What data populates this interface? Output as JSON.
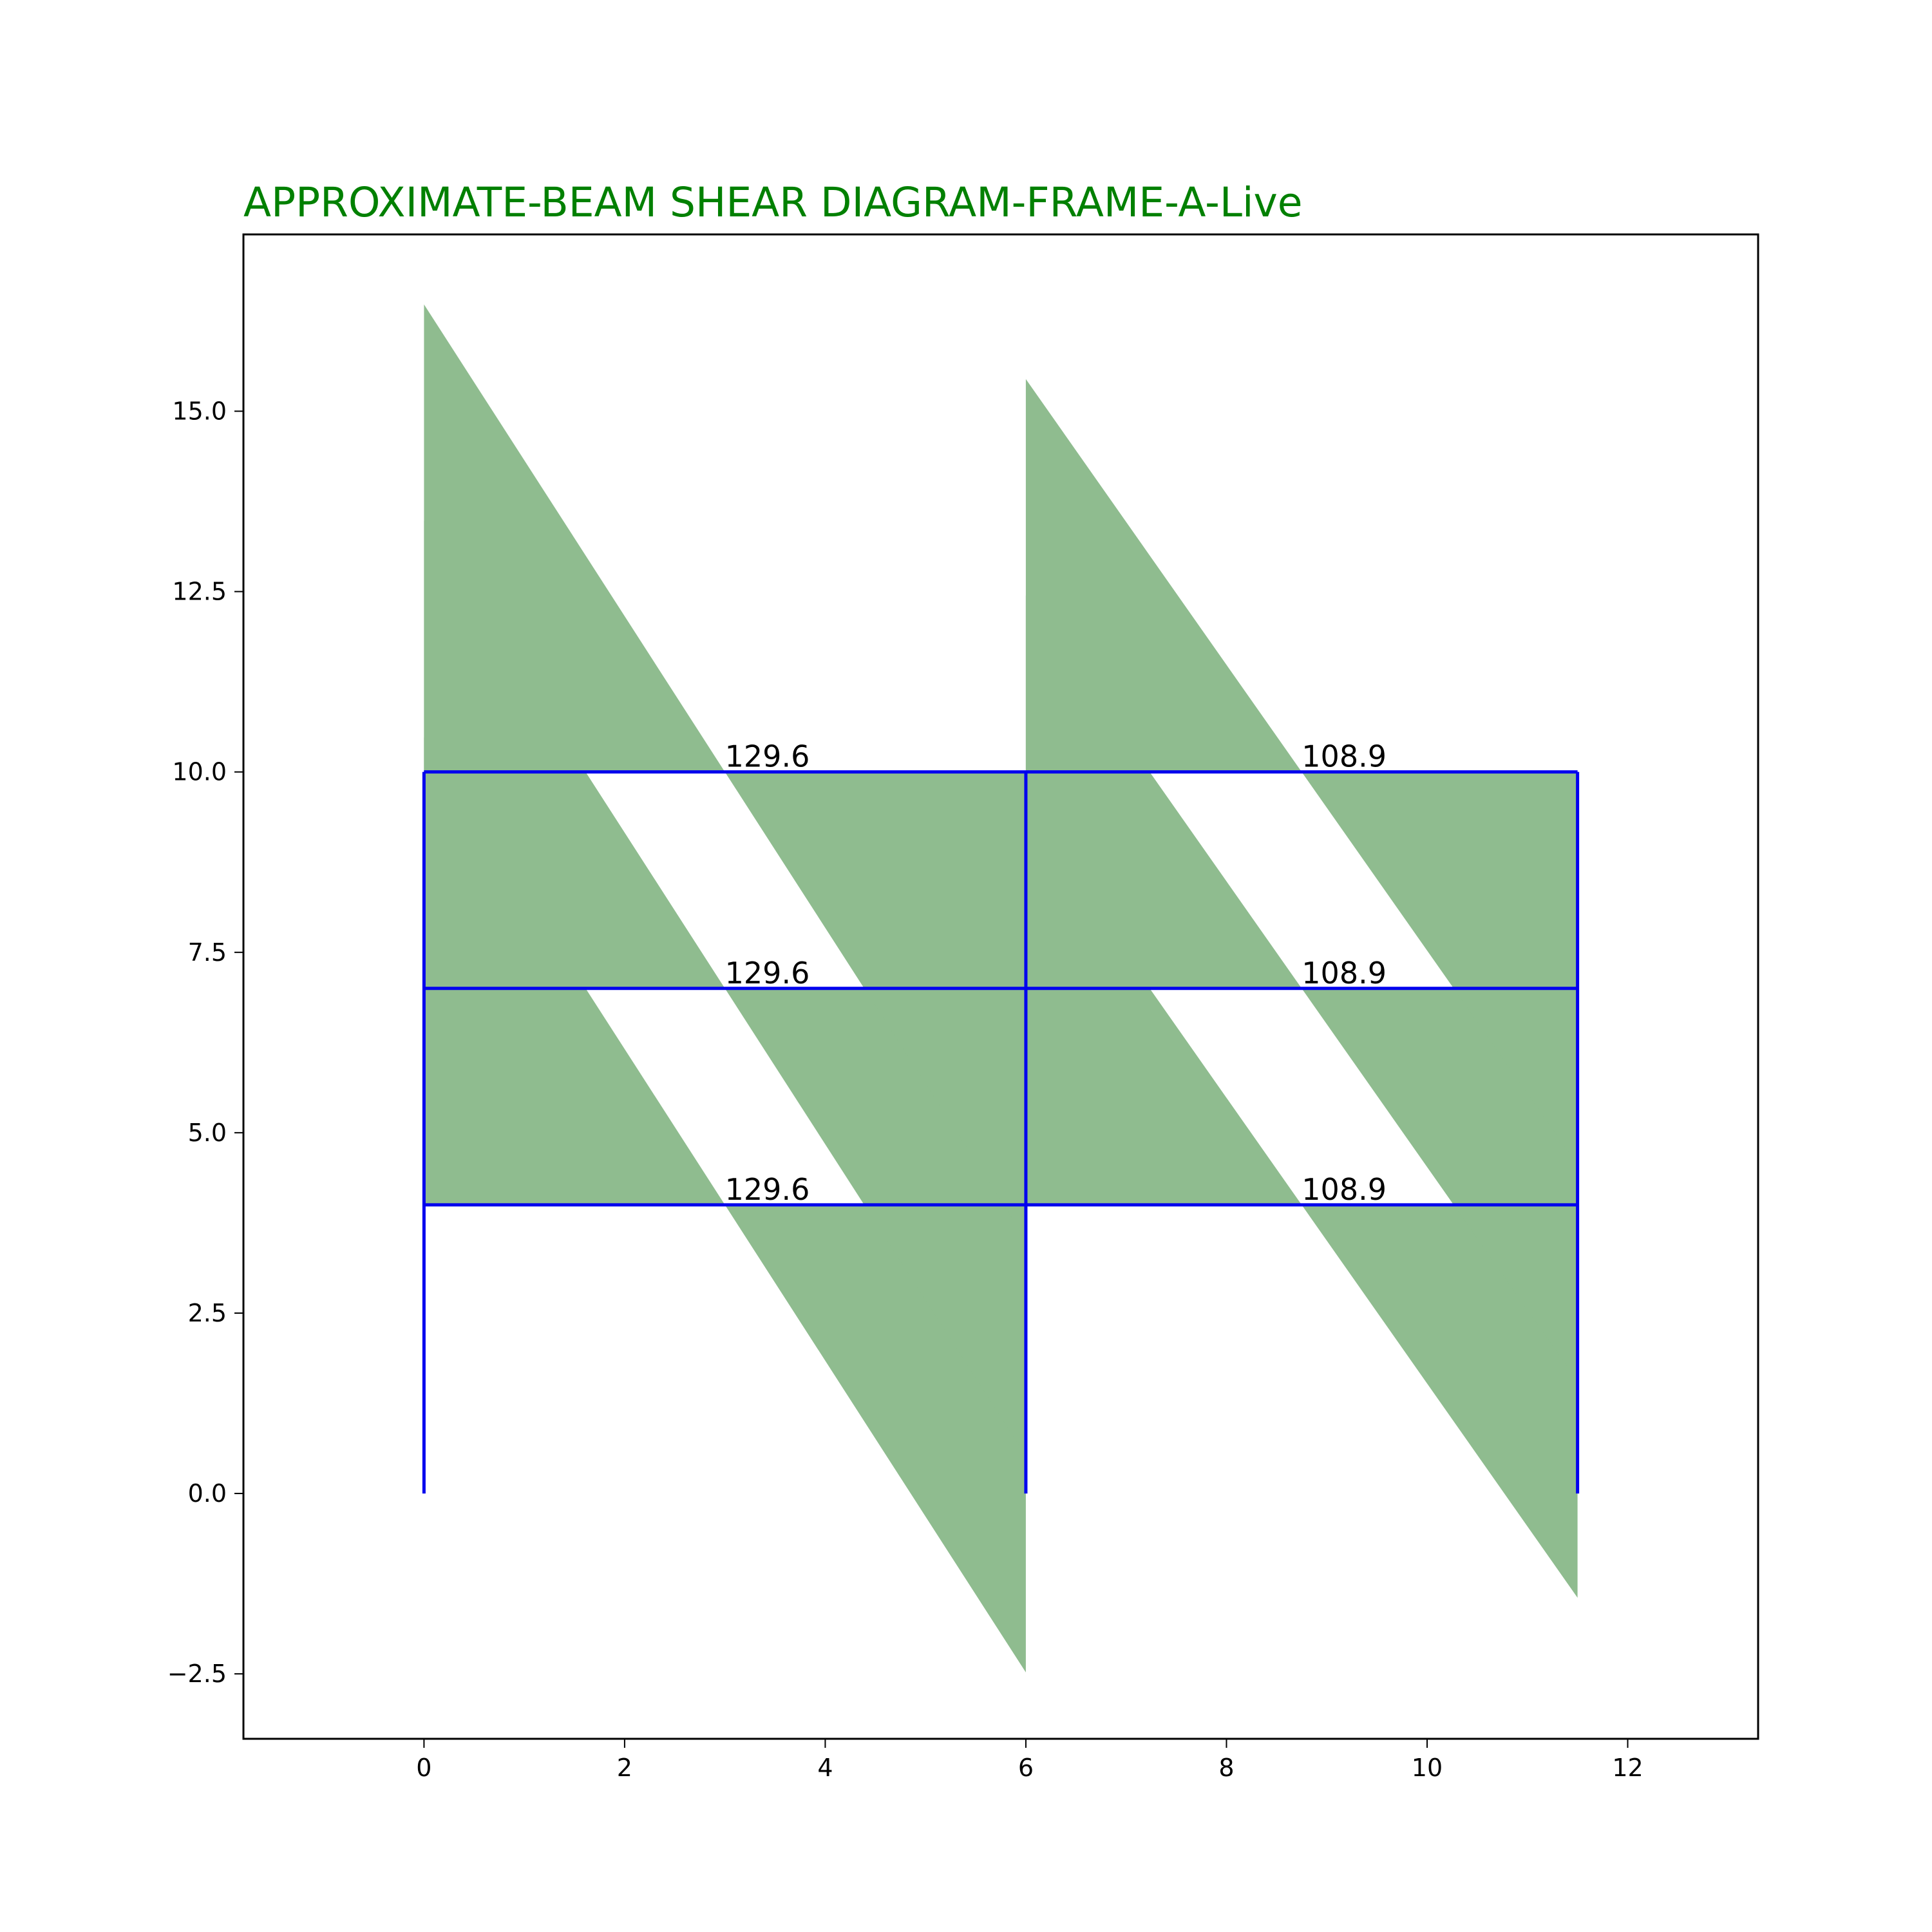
{
  "chart_data": {
    "type": "area",
    "title": "APPROXIMATE-BEAM SHEAR DIAGRAM-FRAME-A-Live",
    "xlabel": "",
    "ylabel": "",
    "xlim": [
      -1.8,
      13.3
    ],
    "ylim": [
      -3.4,
      17.45
    ],
    "x_ticks": [
      0,
      2,
      4,
      6,
      8,
      10,
      12
    ],
    "y_ticks": [
      -2.5,
      0.0,
      2.5,
      5.0,
      7.5,
      10.0,
      12.5,
      15.0
    ],
    "y_tick_labels": [
      "−2.5",
      "0.0",
      "2.5",
      "5.0",
      "7.5",
      "10.0",
      "12.5",
      "15.0"
    ],
    "grid": false,
    "frame": {
      "columns_x": [
        0,
        6,
        11.5
      ],
      "column_base_y": 0,
      "column_top_y": 10,
      "floor_levels_y": [
        4,
        7,
        10
      ]
    },
    "shear_polygons": [
      {
        "bay": 1,
        "level_y": 4,
        "x_start": 0,
        "x_end": 6,
        "v_start": 6.48,
        "v_end": -6.48
      },
      {
        "bay": 1,
        "level_y": 7,
        "x_start": 0,
        "x_end": 6,
        "v_start": 6.48,
        "v_end": -6.48
      },
      {
        "bay": 1,
        "level_y": 10,
        "x_start": 0,
        "x_end": 6,
        "v_start": 6.48,
        "v_end": -6.48
      },
      {
        "bay": 2,
        "level_y": 4,
        "x_start": 6,
        "x_end": 11.5,
        "v_start": 5.445,
        "v_end": -5.445
      },
      {
        "bay": 2,
        "level_y": 7,
        "x_start": 6,
        "x_end": 11.5,
        "v_start": 5.445,
        "v_end": -5.445
      },
      {
        "bay": 2,
        "level_y": 10,
        "x_start": 6,
        "x_end": 11.5,
        "v_start": 5.445,
        "v_end": -5.445
      }
    ],
    "annotations": [
      {
        "text": "129.6",
        "x": 3.0,
        "y": 10
      },
      {
        "text": "129.6",
        "x": 3.0,
        "y": 7
      },
      {
        "text": "129.6",
        "x": 3.0,
        "y": 4
      },
      {
        "text": "108.9",
        "x": 8.75,
        "y": 10
      },
      {
        "text": "108.9",
        "x": 8.75,
        "y": 7
      },
      {
        "text": "108.9",
        "x": 8.75,
        "y": 4
      }
    ]
  },
  "colors": {
    "fill": "#8fbc8f",
    "frame": "#0000ee",
    "title": "#008000",
    "axes": "#000000"
  }
}
